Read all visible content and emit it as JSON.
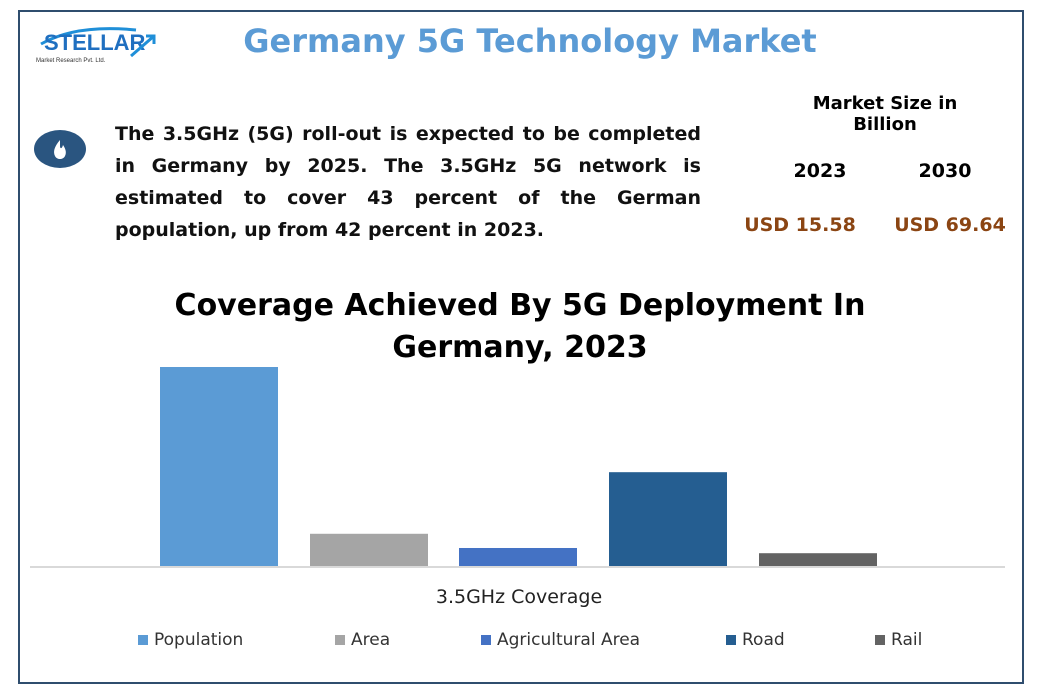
{
  "header": {
    "title": "Germany 5G Technology Market",
    "logo_text": "STELLAR",
    "logo_sub": "Market Research Pvt. Ltd.",
    "icon": "flame-icon"
  },
  "description": "The 3.5GHz (5G) roll-out is expected to be completed in Germany by 2025. The 3.5GHz 5G network is estimated to cover 43 percent of the German population, up from 42 percent in 2023.",
  "market_size": {
    "label": "Market Size in Billion",
    "years": [
      "2023",
      "2030"
    ],
    "values": [
      "USD 15.58",
      "USD 69.64"
    ],
    "value_color": "#8b4513"
  },
  "chart_data": {
    "type": "bar",
    "title": "Coverage Achieved By 5G Deployment In Germany, 2023",
    "xlabel": "3.5GHz Coverage",
    "ylabel": "",
    "categories": [
      "3.5GHz Coverage"
    ],
    "series": [
      {
        "name": "Population",
        "values": [
          42
        ],
        "color": "#5b9bd5"
      },
      {
        "name": "Area",
        "values": [
          6.8
        ],
        "color": "#a5a5a5"
      },
      {
        "name": "Agricultural Area",
        "values": [
          3.8
        ],
        "color": "#4472c4"
      },
      {
        "name": "Road",
        "values": [
          19.8
        ],
        "color": "#255e91"
      },
      {
        "name": "Rail",
        "values": [
          2.7
        ],
        "color": "#636363"
      }
    ],
    "ylim": [
      0,
      42
    ],
    "grid": false,
    "legend": "bottom"
  }
}
